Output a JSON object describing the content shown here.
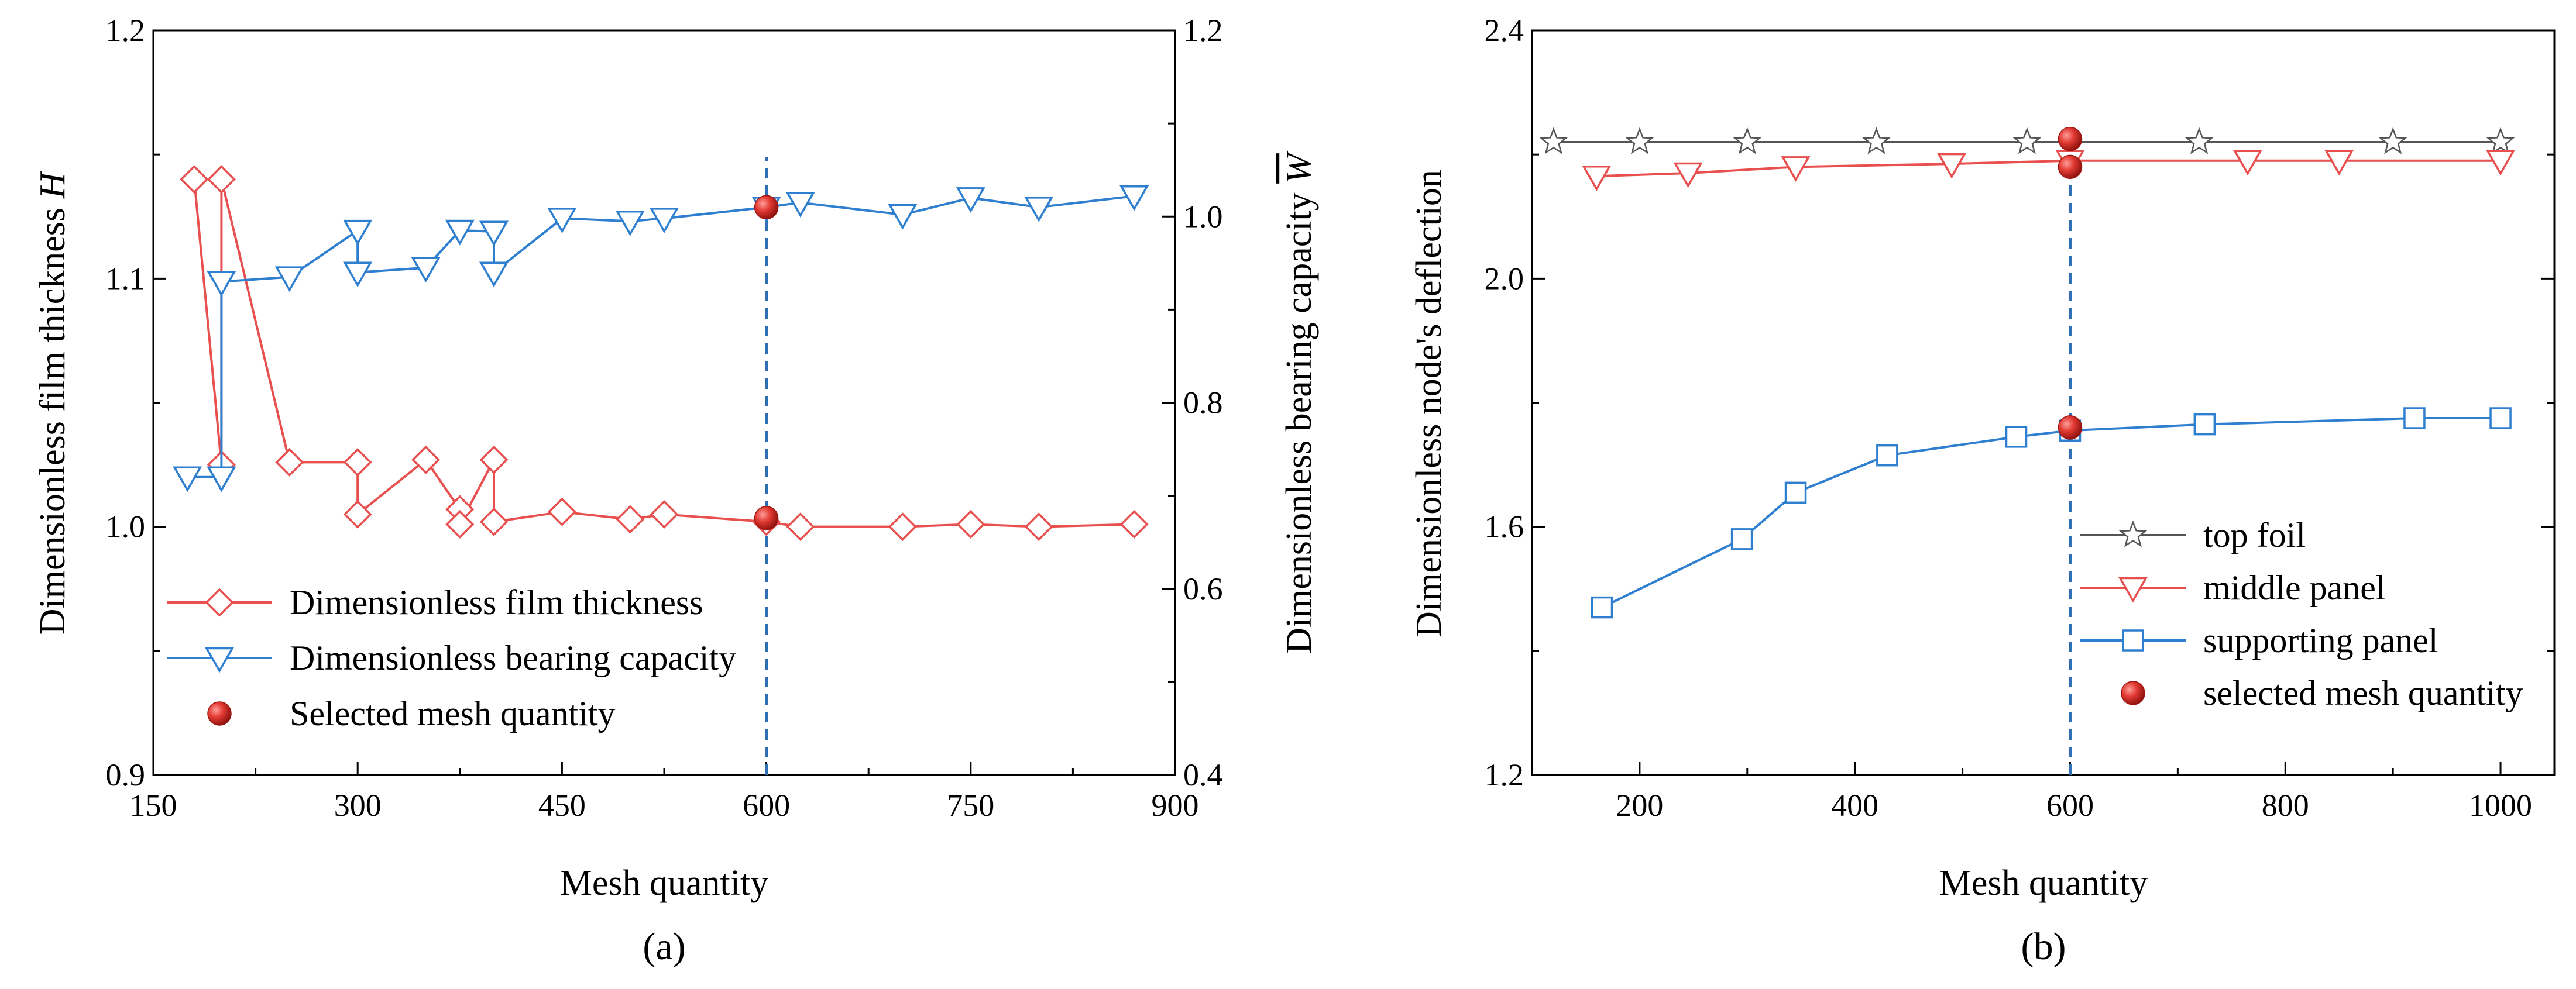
{
  "colors": {
    "red": "#e8504f",
    "blue": "#2f7fd0",
    "dark": "#555555",
    "marker_red": "#d42a24",
    "guide": "#2e6fb4"
  },
  "chart_data": [
    {
      "type": "line",
      "caption": "(a)",
      "xlabel": "Mesh quantity",
      "ylabel": "Dimensionless film thickness H",
      "y2label": "Dimensionless bearing capacity W̄",
      "xlim": [
        150,
        900
      ],
      "ylim": [
        0.9,
        1.2
      ],
      "y2lim": [
        0.4,
        1.2
      ],
      "xticks": [
        "150",
        "300",
        "450",
        "600",
        "750",
        "900"
      ],
      "yticks": [
        "0.9",
        "1.0",
        "1.1",
        "1.2"
      ],
      "y2ticks": [
        "0.4",
        "0.6",
        "0.8",
        "1.0",
        "1.2"
      ],
      "legend_position": "bottom-left",
      "vline_x": 600,
      "series": [
        {
          "name": "Dimensionless film thickness",
          "axis": "left",
          "marker": "diamond",
          "color": "#e8504f",
          "x": [
            180,
            200,
            200,
            250,
            300,
            300,
            350,
            375,
            375,
            400,
            400,
            450,
            500,
            525,
            600,
            625,
            700,
            750,
            800,
            870
          ],
          "y": [
            1.14,
            1.025,
            1.14,
            1.026,
            1.026,
            1.005,
            1.027,
            1.007,
            1.001,
            1.027,
            1.002,
            1.006,
            1.003,
            1.005,
            1.002,
            1.0,
            1.0,
            1.001,
            1.0,
            1.001
          ]
        },
        {
          "name": "Dimensionless bearing capacity",
          "axis": "right",
          "marker": "triangle-down",
          "color": "#2f7fd0",
          "x": [
            175,
            200,
            200,
            200,
            250,
            300,
            300,
            350,
            375,
            375,
            400,
            400,
            450,
            500,
            525,
            600,
            625,
            700,
            750,
            800,
            870
          ],
          "y": [
            0.72,
            0.72,
            0.72,
            0.93,
            0.935,
            0.985,
            0.94,
            0.945,
            0.985,
            0.985,
            0.984,
            0.94,
            0.998,
            0.995,
            0.998,
            1.01,
            1.015,
            1.002,
            1.02,
            1.01,
            1.022
          ]
        },
        {
          "name": "Selected mesh quantity",
          "marker": "sphere",
          "color": "#d42a24",
          "points": [
            {
              "x": 600,
              "y": 1.0035,
              "axis": "left"
            },
            {
              "x": 600,
              "y": 1.01,
              "axis": "right"
            }
          ]
        }
      ]
    },
    {
      "type": "line",
      "caption": "(b)",
      "xlabel": "Mesh quantity",
      "ylabel": "Dimensionless node's deflection",
      "xlim": [
        100,
        1050
      ],
      "ylim": [
        1.2,
        2.4
      ],
      "xticks": [
        "200",
        "400",
        "600",
        "800",
        "1000"
      ],
      "yticks": [
        "1.2",
        "1.6",
        "2.0",
        "2.4"
      ],
      "legend_position": "bottom-right",
      "vline_x": 600,
      "series": [
        {
          "name": "top foil",
          "marker": "star",
          "color": "#555555",
          "x": [
            120,
            200,
            300,
            420,
            560,
            720,
            900,
            1000
          ],
          "y": [
            2.22,
            2.22,
            2.22,
            2.22,
            2.22,
            2.22,
            2.22,
            2.22
          ]
        },
        {
          "name": "middle panel",
          "marker": "triangle-down",
          "color": "#e8504f",
          "x": [
            160,
            245,
            345,
            490,
            600,
            765,
            850,
            1000
          ],
          "y": [
            2.165,
            2.17,
            2.18,
            2.185,
            2.19,
            2.19,
            2.19,
            2.19
          ]
        },
        {
          "name": "supporting panel",
          "marker": "square",
          "color": "#2f7fd0",
          "x": [
            165,
            295,
            345,
            430,
            550,
            600,
            725,
            920,
            1000
          ],
          "y": [
            1.47,
            1.58,
            1.655,
            1.715,
            1.745,
            1.755,
            1.765,
            1.775,
            1.775
          ]
        },
        {
          "name": "selected mesh quantity",
          "marker": "sphere",
          "color": "#d42a24",
          "points": [
            {
              "x": 600,
              "y": 2.225
            },
            {
              "x": 600,
              "y": 2.18
            },
            {
              "x": 600,
              "y": 1.76
            }
          ]
        }
      ]
    }
  ]
}
